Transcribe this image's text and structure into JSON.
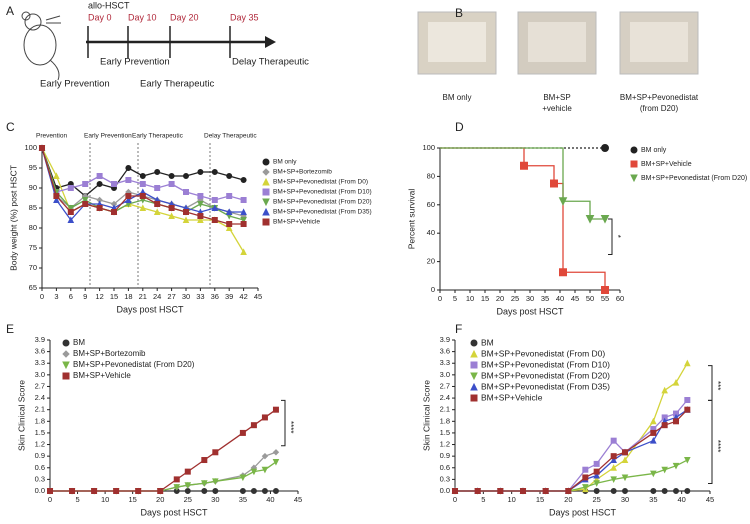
{
  "figure": {
    "panel_labels": [
      "A",
      "B",
      "C",
      "D",
      "E",
      "F"
    ],
    "timeline": {
      "title": "allo-HSCT",
      "ticks": [
        "Day 0",
        "Day 10",
        "Day 20",
        "Day 35"
      ],
      "phases": [
        "Early Prevention",
        "Early Prevention",
        "Early Therapeutic",
        "Delay  Therapeutic"
      ]
    },
    "photos": [
      [
        "BM only"
      ],
      [
        "BM+SP",
        "+vehicle"
      ],
      [
        "BM+SP+Pevonedistat",
        "(from D20)"
      ]
    ]
  },
  "chart_data": [
    {
      "type": "line",
      "xlabel": "Days post HSCT",
      "ylabel": "Body weight (%) post HSCT",
      "legend": "right",
      "x": [
        0,
        3,
        6,
        9,
        12,
        15,
        18,
        21,
        24,
        27,
        30,
        33,
        36,
        39,
        42
      ],
      "xlim": [
        0,
        45
      ],
      "ylim": [
        65,
        100
      ],
      "xticks": [
        0,
        3,
        6,
        9,
        12,
        15,
        18,
        21,
        24,
        27,
        30,
        33,
        36,
        39,
        42,
        45
      ],
      "yticks": [
        65,
        70,
        75,
        80,
        85,
        90,
        95,
        100
      ],
      "phases": [
        {
          "label": "Prevention",
          "x": 0
        },
        {
          "label": "Early Prevention",
          "x": 10
        },
        {
          "label": "Early Therapeutic",
          "x": 20
        },
        {
          "label": "Delay Therapeutic",
          "x": 35
        }
      ],
      "series": [
        {
          "name": "BM only",
          "color": "#222222",
          "marker": "circle",
          "values": [
            100,
            90,
            91,
            88,
            91,
            90,
            95,
            93,
            94,
            93,
            93,
            94,
            94,
            93,
            92
          ]
        },
        {
          "name": "BM+SP+Bortezomib",
          "color": "#9a9a9a",
          "marker": "diamond",
          "values": [
            100,
            88,
            85,
            88,
            87,
            86,
            89,
            88,
            87,
            86,
            85,
            87,
            85,
            84,
            83
          ]
        },
        {
          "name": "BM+SP+Pevonedistat (From D0)",
          "color": "#d4d43a",
          "marker": "triangle",
          "values": [
            100,
            93,
            84,
            86,
            85,
            84,
            86,
            85,
            84,
            83,
            82,
            82,
            82,
            80,
            74
          ]
        },
        {
          "name": "BM+SP+Pevonedistat (From D10)",
          "color": "#9b7fd4",
          "marker": "square",
          "values": [
            100,
            89,
            90,
            91,
            93,
            91,
            92,
            91,
            90,
            91,
            89,
            88,
            87,
            88,
            87
          ]
        },
        {
          "name": "BM+SP+Pevonedistat (From D20)",
          "color": "#6aa84f",
          "marker": "triangle-down",
          "values": [
            100,
            89,
            85,
            87,
            85,
            84,
            86,
            87,
            86,
            85,
            84,
            86,
            85,
            83,
            82
          ]
        },
        {
          "name": "BM+SP+Pevonedistat (From D35)",
          "color": "#3c4fc9",
          "marker": "triangle",
          "values": [
            100,
            87,
            82,
            86,
            86,
            85,
            87,
            89,
            87,
            86,
            85,
            84,
            85,
            84,
            84
          ]
        },
        {
          "name": "BM+SP+Vehicle",
          "color": "#a0302f",
          "marker": "square",
          "values": [
            100,
            88,
            84,
            86,
            85,
            84,
            88,
            88,
            86,
            85,
            84,
            83,
            82,
            81,
            81
          ]
        }
      ]
    },
    {
      "type": "step",
      "xlabel": "Days post HSCT",
      "ylabel": "Percent survival",
      "legend": "right",
      "xlim": [
        0,
        60
      ],
      "ylim": [
        0,
        100
      ],
      "xticks": [
        0,
        5,
        10,
        15,
        20,
        25,
        30,
        35,
        40,
        45,
        50,
        55,
        60
      ],
      "yticks": [
        0,
        20,
        40,
        60,
        80,
        100
      ],
      "annotations": [
        "*"
      ],
      "series": [
        {
          "name": "BM only",
          "color": "#222222",
          "marker": "circle",
          "dash": true,
          "x": [
            0,
            55
          ],
          "values": [
            100,
            100
          ]
        },
        {
          "name": "BM+SP+Vehicle",
          "color": "#e0483a",
          "marker": "square",
          "x": [
            0,
            28,
            38,
            41,
            55
          ],
          "values": [
            100,
            87.5,
            75,
            12.5,
            0
          ]
        },
        {
          "name": "BM+SP+Pevonedistat (From D20)",
          "color": "#6aa84f",
          "marker": "triangle-down",
          "x": [
            0,
            41,
            50,
            55
          ],
          "values": [
            100,
            62.5,
            50,
            50
          ]
        }
      ]
    },
    {
      "type": "line",
      "xlabel": "Days post HSCT",
      "ylabel": "Skin Clinical Score",
      "legend": "upper left",
      "x": [
        0,
        4,
        8,
        12,
        16,
        20,
        23,
        25,
        28,
        30,
        35,
        37,
        39,
        41
      ],
      "xlim": [
        0,
        45
      ],
      "ylim": [
        0,
        3.9
      ],
      "xticks": [
        0,
        5,
        10,
        15,
        20,
        25,
        30,
        35,
        40,
        45
      ],
      "yticks": [
        {
          "value": 0,
          "label": "0.0"
        },
        0.3,
        0.6,
        0.9,
        1.2,
        1.5,
        1.8,
        2.1,
        2.4,
        2.7,
        {
          "value": 3,
          "label": "3.0"
        },
        3.3,
        3.6,
        3.9
      ],
      "annotations": [
        "****"
      ],
      "series": [
        {
          "name": "BM",
          "color": "#333333",
          "marker": "circle",
          "values": [
            0,
            0,
            0,
            0,
            0,
            0,
            0,
            0,
            0,
            0,
            0,
            0,
            0,
            0
          ]
        },
        {
          "name": "BM+SP+Bortezomib",
          "color": "#9a9a9a",
          "marker": "diamond",
          "values": [
            0,
            0,
            0,
            0,
            0,
            0,
            0.1,
            0.15,
            0.2,
            0.25,
            0.4,
            0.6,
            0.9,
            1.0
          ]
        },
        {
          "name": "BM+SP+Pevonedistat (From D20)",
          "color": "#7ab648",
          "marker": "triangle-down",
          "values": [
            0,
            0,
            0,
            0,
            0,
            0,
            0.1,
            0.15,
            0.2,
            0.25,
            0.35,
            0.5,
            0.55,
            0.75
          ]
        },
        {
          "name": "BM+SP+Vehicle",
          "color": "#a0302f",
          "marker": "square",
          "values": [
            0,
            0,
            0,
            0,
            0,
            0,
            0.3,
            0.5,
            0.8,
            1.0,
            1.5,
            1.7,
            1.9,
            2.1
          ]
        }
      ]
    },
    {
      "type": "line",
      "xlabel": "Days post HSCT",
      "ylabel": "Skin Clinical Score",
      "legend": "upper left",
      "x": [
        0,
        4,
        8,
        12,
        16,
        20,
        23,
        25,
        28,
        30,
        35,
        37,
        39,
        41
      ],
      "xlim": [
        0,
        45
      ],
      "ylim": [
        0,
        3.9
      ],
      "xticks": [
        0,
        5,
        10,
        15,
        20,
        25,
        30,
        35,
        40,
        45
      ],
      "yticks": [
        {
          "value": 0,
          "label": "0.0"
        },
        0.3,
        0.6,
        0.9,
        1.2,
        1.5,
        1.8,
        2.1,
        2.4,
        2.7,
        {
          "value": 3,
          "label": "3.0"
        },
        3.3,
        3.6,
        3.9
      ],
      "annotations": [
        "***",
        "****"
      ],
      "series": [
        {
          "name": "BM",
          "color": "#333333",
          "marker": "circle",
          "values": [
            0,
            0,
            0,
            0,
            0,
            0,
            0,
            0,
            0,
            0,
            0,
            0,
            0,
            0
          ]
        },
        {
          "name": "BM+SP+Pevonedistat (From D0)",
          "color": "#d4d43a",
          "marker": "triangle",
          "values": [
            0,
            0,
            0,
            0,
            0,
            0,
            0.05,
            0.3,
            0.6,
            0.8,
            1.8,
            2.6,
            2.8,
            3.3
          ]
        },
        {
          "name": "BM+SP+Pevonedistat (From D10)",
          "color": "#9b7fd4",
          "marker": "square",
          "values": [
            0,
            0,
            0,
            0,
            0,
            0,
            0.55,
            0.7,
            1.3,
            1.0,
            1.6,
            1.9,
            2.0,
            2.35
          ]
        },
        {
          "name": "BM+SP+Pevonedistat (From D20)",
          "color": "#7ab648",
          "marker": "triangle-down",
          "values": [
            0,
            0,
            0,
            0,
            0,
            0,
            0.1,
            0.2,
            0.3,
            0.35,
            0.45,
            0.55,
            0.65,
            0.8
          ]
        },
        {
          "name": "BM+SP+Pevonedistat (From D35)",
          "color": "#3c4fc9",
          "marker": "triangle",
          "values": [
            0,
            0,
            0,
            0,
            0,
            0,
            0.3,
            0.4,
            0.8,
            1.0,
            1.3,
            1.8,
            1.9,
            2.1
          ]
        },
        {
          "name": "BM+SP+Vehicle",
          "color": "#a0302f",
          "marker": "square",
          "values": [
            0,
            0,
            0,
            0,
            0,
            0,
            0.35,
            0.5,
            0.9,
            1.0,
            1.5,
            1.7,
            1.8,
            2.1
          ]
        }
      ]
    }
  ]
}
